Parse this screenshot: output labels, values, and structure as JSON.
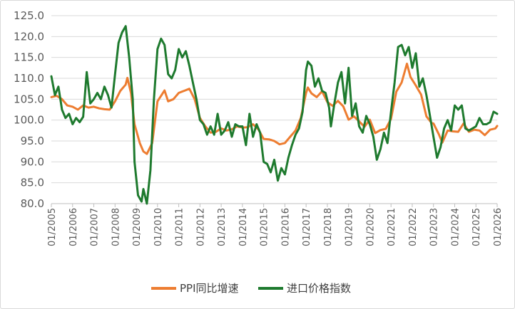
{
  "chart_data": {
    "type": "line",
    "title": "",
    "xlabel": "",
    "ylabel": "",
    "ylim": [
      80,
      125
    ],
    "xlim": [
      "2005-01",
      "2026-01"
    ],
    "y_ticks": [
      "80.0",
      "85.0",
      "90.0",
      "95.0",
      "100.0",
      "105.0",
      "110.0",
      "115.0",
      "120.0",
      "125.0"
    ],
    "x_ticks": [
      "01/2005",
      "01/2006",
      "01/2007",
      "01/2008",
      "01/2009",
      "01/2010",
      "01/2011",
      "01/2012",
      "01/2013",
      "01/2014",
      "01/2015",
      "01/2016",
      "01/2017",
      "01/2018",
      "01/2019",
      "01/2020",
      "01/2021",
      "01/2022",
      "01/2023",
      "01/2024",
      "01/2025",
      "01/2026"
    ],
    "grid": "horizontal",
    "legend_position": "bottom",
    "series": [
      {
        "name": "PPI同比增速",
        "color": "#ED7D31",
        "points": [
          [
            "2005-01",
            105.5
          ],
          [
            "2005-04",
            105.8
          ],
          [
            "2005-07",
            105.0
          ],
          [
            "2005-10",
            103.5
          ],
          [
            "2006-01",
            103.2
          ],
          [
            "2006-04",
            102.5
          ],
          [
            "2006-07",
            103.5
          ],
          [
            "2006-10",
            103.0
          ],
          [
            "2007-01",
            103.2
          ],
          [
            "2007-04",
            102.8
          ],
          [
            "2007-07",
            102.6
          ],
          [
            "2007-10",
            102.5
          ],
          [
            "2008-01",
            104.5
          ],
          [
            "2008-04",
            107.0
          ],
          [
            "2008-07",
            108.5
          ],
          [
            "2008-08",
            110.1
          ],
          [
            "2008-10",
            106.5
          ],
          [
            "2008-12",
            99.0
          ],
          [
            "2009-03",
            94.5
          ],
          [
            "2009-05",
            92.5
          ],
          [
            "2009-07",
            91.9
          ],
          [
            "2009-10",
            94.5
          ],
          [
            "2010-01",
            104.5
          ],
          [
            "2010-05",
            107.1
          ],
          [
            "2010-07",
            104.5
          ],
          [
            "2010-10",
            105.0
          ],
          [
            "2011-01",
            106.5
          ],
          [
            "2011-04",
            107.0
          ],
          [
            "2011-07",
            107.5
          ],
          [
            "2011-10",
            105.0
          ],
          [
            "2012-01",
            100.5
          ],
          [
            "2012-04",
            98.5
          ],
          [
            "2012-07",
            97.0
          ],
          [
            "2012-10",
            97.2
          ],
          [
            "2013-01",
            98.0
          ],
          [
            "2013-04",
            97.5
          ],
          [
            "2013-07",
            97.8
          ],
          [
            "2013-10",
            98.5
          ],
          [
            "2014-01",
            98.2
          ],
          [
            "2014-04",
            98.3
          ],
          [
            "2014-07",
            99.0
          ],
          [
            "2014-10",
            97.8
          ],
          [
            "2015-01",
            95.5
          ],
          [
            "2015-04",
            95.4
          ],
          [
            "2015-07",
            95.0
          ],
          [
            "2015-10",
            94.2
          ],
          [
            "2016-01",
            94.5
          ],
          [
            "2016-04",
            96.0
          ],
          [
            "2016-07",
            97.5
          ],
          [
            "2016-10",
            100.5
          ],
          [
            "2017-01",
            106.5
          ],
          [
            "2017-02",
            107.8
          ],
          [
            "2017-04",
            106.4
          ],
          [
            "2017-07",
            105.5
          ],
          [
            "2017-10",
            106.9
          ],
          [
            "2018-01",
            104.3
          ],
          [
            "2018-04",
            103.4
          ],
          [
            "2018-07",
            104.6
          ],
          [
            "2018-10",
            103.3
          ],
          [
            "2019-01",
            100.1
          ],
          [
            "2019-04",
            100.9
          ],
          [
            "2019-07",
            99.7
          ],
          [
            "2019-10",
            98.4
          ],
          [
            "2020-01",
            100.1
          ],
          [
            "2020-04",
            96.9
          ],
          [
            "2020-07",
            97.6
          ],
          [
            "2020-10",
            97.9
          ],
          [
            "2021-01",
            100.3
          ],
          [
            "2021-04",
            106.8
          ],
          [
            "2021-07",
            109.0
          ],
          [
            "2021-10",
            113.5
          ],
          [
            "2021-12",
            110.3
          ],
          [
            "2022-03",
            108.3
          ],
          [
            "2022-06",
            106.1
          ],
          [
            "2022-09",
            100.9
          ],
          [
            "2022-12",
            99.3
          ],
          [
            "2023-01",
            99.2
          ],
          [
            "2023-04",
            96.6
          ],
          [
            "2023-06",
            94.6
          ],
          [
            "2023-09",
            97.5
          ],
          [
            "2023-12",
            97.3
          ],
          [
            "2024-03",
            97.2
          ],
          [
            "2024-06",
            99.2
          ],
          [
            "2024-09",
            97.2
          ],
          [
            "2024-12",
            97.7
          ],
          [
            "2025-03",
            97.5
          ],
          [
            "2025-06",
            96.4
          ],
          [
            "2025-09",
            97.7
          ],
          [
            "2025-12",
            98.0
          ],
          [
            "2026-01",
            98.6
          ]
        ]
      },
      {
        "name": "进口价格指数",
        "color": "#1E7A2E",
        "points": [
          [
            "2005-01",
            110.5
          ],
          [
            "2005-03",
            106.0
          ],
          [
            "2005-05",
            108.0
          ],
          [
            "2005-07",
            102.5
          ],
          [
            "2005-09",
            100.5
          ],
          [
            "2005-11",
            101.5
          ],
          [
            "2006-01",
            99.0
          ],
          [
            "2006-03",
            100.5
          ],
          [
            "2006-05",
            99.5
          ],
          [
            "2006-07",
            100.8
          ],
          [
            "2006-09",
            111.5
          ],
          [
            "2006-11",
            104.0
          ],
          [
            "2007-01",
            105.0
          ],
          [
            "2007-03",
            106.5
          ],
          [
            "2007-05",
            105.0
          ],
          [
            "2007-07",
            108.0
          ],
          [
            "2007-09",
            106.0
          ],
          [
            "2007-11",
            103.0
          ],
          [
            "2008-01",
            111.0
          ],
          [
            "2008-03",
            118.5
          ],
          [
            "2008-05",
            121.0
          ],
          [
            "2008-07",
            122.5
          ],
          [
            "2008-09",
            115.0
          ],
          [
            "2008-11",
            105.0
          ],
          [
            "2008-12",
            90.0
          ],
          [
            "2009-02",
            82.0
          ],
          [
            "2009-04",
            80.5
          ],
          [
            "2009-05",
            83.5
          ],
          [
            "2009-07",
            80.0
          ],
          [
            "2009-09",
            88.0
          ],
          [
            "2009-11",
            105.0
          ],
          [
            "2010-01",
            117.0
          ],
          [
            "2010-03",
            119.5
          ],
          [
            "2010-05",
            118.0
          ],
          [
            "2010-07",
            111.0
          ],
          [
            "2010-09",
            110.0
          ],
          [
            "2010-11",
            112.0
          ],
          [
            "2011-01",
            117.0
          ],
          [
            "2011-03",
            115.0
          ],
          [
            "2011-05",
            116.5
          ],
          [
            "2011-07",
            113.0
          ],
          [
            "2011-09",
            109.0
          ],
          [
            "2011-11",
            105.0
          ],
          [
            "2012-01",
            100.0
          ],
          [
            "2012-03",
            99.0
          ],
          [
            "2012-05",
            96.5
          ],
          [
            "2012-07",
            98.5
          ],
          [
            "2012-09",
            96.5
          ],
          [
            "2012-11",
            101.5
          ],
          [
            "2013-01",
            96.5
          ],
          [
            "2013-03",
            97.5
          ],
          [
            "2013-05",
            99.5
          ],
          [
            "2013-07",
            96.0
          ],
          [
            "2013-09",
            99.0
          ],
          [
            "2013-11",
            98.5
          ],
          [
            "2014-01",
            98.5
          ],
          [
            "2014-03",
            94.0
          ],
          [
            "2014-05",
            101.5
          ],
          [
            "2014-07",
            96.0
          ],
          [
            "2014-09",
            99.0
          ],
          [
            "2014-11",
            97.0
          ],
          [
            "2015-01",
            90.0
          ],
          [
            "2015-03",
            89.5
          ],
          [
            "2015-05",
            87.5
          ],
          [
            "2015-07",
            90.5
          ],
          [
            "2015-09",
            85.5
          ],
          [
            "2015-11",
            88.5
          ],
          [
            "2016-01",
            87.0
          ],
          [
            "2016-03",
            91.0
          ],
          [
            "2016-05",
            94.0
          ],
          [
            "2016-07",
            96.5
          ],
          [
            "2016-09",
            98.0
          ],
          [
            "2016-11",
            102.0
          ],
          [
            "2017-01",
            112.0
          ],
          [
            "2017-02",
            114.0
          ],
          [
            "2017-04",
            113.0
          ],
          [
            "2017-06",
            108.0
          ],
          [
            "2017-08",
            110.0
          ],
          [
            "2017-10",
            107.0
          ],
          [
            "2017-12",
            106.5
          ],
          [
            "2018-02",
            103.0
          ],
          [
            "2018-03",
            98.5
          ],
          [
            "2018-05",
            104.0
          ],
          [
            "2018-07",
            109.0
          ],
          [
            "2018-09",
            111.5
          ],
          [
            "2018-11",
            104.0
          ],
          [
            "2019-01",
            112.5
          ],
          [
            "2019-03",
            101.0
          ],
          [
            "2019-05",
            104.0
          ],
          [
            "2019-07",
            98.5
          ],
          [
            "2019-09",
            97.0
          ],
          [
            "2019-11",
            101.0
          ],
          [
            "2020-01",
            99.0
          ],
          [
            "2020-03",
            96.0
          ],
          [
            "2020-05",
            90.5
          ],
          [
            "2020-07",
            93.0
          ],
          [
            "2020-09",
            97.0
          ],
          [
            "2020-11",
            94.5
          ],
          [
            "2021-01",
            102.0
          ],
          [
            "2021-03",
            109.0
          ],
          [
            "2021-05",
            117.5
          ],
          [
            "2021-07",
            118.0
          ],
          [
            "2021-09",
            115.5
          ],
          [
            "2021-11",
            117.5
          ],
          [
            "2022-01",
            112.5
          ],
          [
            "2022-03",
            116.0
          ],
          [
            "2022-05",
            108.0
          ],
          [
            "2022-07",
            110.0
          ],
          [
            "2022-09",
            106.0
          ],
          [
            "2022-11",
            101.0
          ],
          [
            "2023-01",
            96.0
          ],
          [
            "2023-03",
            91.0
          ],
          [
            "2023-05",
            93.5
          ],
          [
            "2023-07",
            98.0
          ],
          [
            "2023-09",
            100.0
          ],
          [
            "2023-11",
            97.5
          ],
          [
            "2024-01",
            103.5
          ],
          [
            "2024-03",
            102.5
          ],
          [
            "2024-05",
            103.5
          ],
          [
            "2024-07",
            98.0
          ],
          [
            "2024-09",
            97.5
          ],
          [
            "2024-11",
            98.0
          ],
          [
            "2025-01",
            98.5
          ],
          [
            "2025-03",
            100.5
          ],
          [
            "2025-05",
            99.0
          ],
          [
            "2025-07",
            99.0
          ],
          [
            "2025-09",
            99.5
          ],
          [
            "2025-11",
            102.0
          ],
          [
            "2026-01",
            101.5
          ]
        ]
      }
    ]
  }
}
